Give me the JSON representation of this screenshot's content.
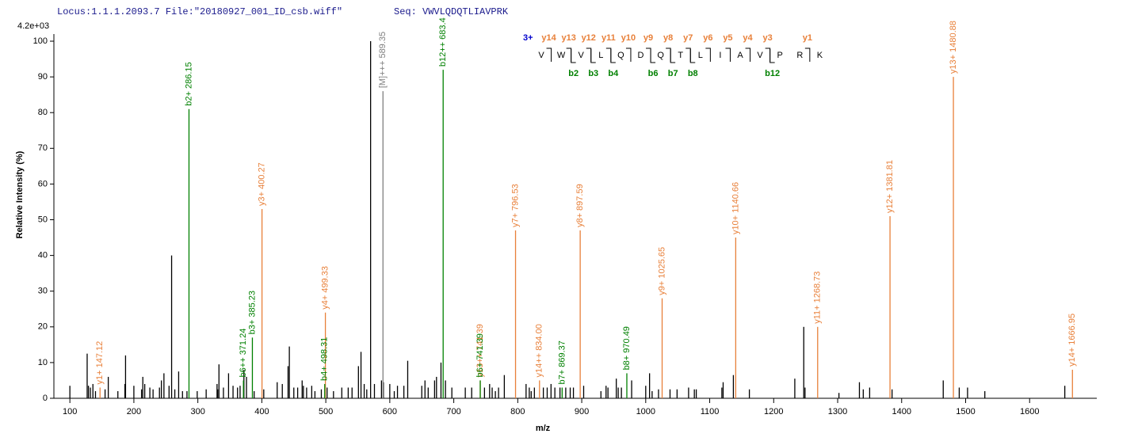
{
  "header": {
    "locus": "Locus:1.1.1.2093.7 File:\"20180927_001_ID_csb.wiff\"",
    "seq": "Seq: VWVLQDQTLIAVPRK"
  },
  "chart_data": {
    "type": "spectrum",
    "scale_label": "4.2e+03",
    "x_label": "m/z",
    "y_label": "Relative   Intensity (%)",
    "xlim": [
      75,
      1705
    ],
    "ylim": [
      0,
      102
    ],
    "xticks": [
      100,
      200,
      300,
      400,
      500,
      600,
      700,
      800,
      900,
      1000,
      1100,
      1200,
      1300,
      1400,
      1500,
      1600
    ],
    "yticks": [
      0,
      10,
      20,
      30,
      40,
      50,
      60,
      70,
      80,
      90,
      100
    ],
    "series": [
      {
        "color": "#000000",
        "x": [
          100,
          127,
          129,
          132,
          136,
          140,
          155,
          160,
          175,
          186,
          187,
          200,
          212,
          214,
          217,
          225,
          230,
          240,
          243,
          247,
          255,
          259,
          264,
          270,
          276,
          283,
          299,
          313,
          330,
          331,
          333,
          340,
          348,
          355,
          362,
          366,
          372,
          376,
          388,
          403,
          424,
          432,
          441,
          443,
          450,
          456,
          463,
          465,
          470,
          478,
          483,
          493,
          502,
          512,
          525,
          535,
          541,
          551,
          555,
          560,
          564,
          570,
          576,
          587,
          590,
          600,
          607,
          612,
          622,
          628,
          650,
          655,
          660,
          670,
          673,
          680,
          687,
          697,
          718,
          728,
          748,
          756,
          760,
          765,
          770,
          779,
          813,
          818,
          821,
          826,
          840,
          846,
          852,
          858,
          866,
          875,
          882,
          887,
          903,
          930,
          938,
          941,
          954,
          957,
          962,
          978,
          1000,
          1006,
          1010,
          1020,
          1038,
          1049,
          1067,
          1076,
          1079,
          1119,
          1121,
          1137,
          1162,
          1233,
          1247,
          1249,
          1302,
          1334,
          1340,
          1350,
          1385,
          1465,
          1490,
          1503,
          1530,
          1655
        ],
        "values": [
          3.5,
          12.5,
          3.5,
          3,
          4,
          2,
          2.5,
          6,
          2,
          4,
          12,
          3.5,
          2.5,
          6,
          4,
          3,
          2.5,
          3,
          5,
          7,
          3.5,
          40,
          2.5,
          7.5,
          2,
          2,
          2,
          2.5,
          4,
          2.5,
          9.5,
          3,
          7,
          3.5,
          3,
          3.5,
          8,
          6,
          2,
          2.5,
          4.5,
          4,
          9,
          14.5,
          3,
          3,
          5,
          3.5,
          3,
          3.5,
          2,
          2.5,
          3,
          2,
          3,
          3,
          3,
          9,
          13,
          4,
          2.5,
          100,
          4,
          5,
          4.5,
          4,
          2,
          3.5,
          3.5,
          10.5,
          3.5,
          5,
          3,
          5,
          6,
          10,
          5,
          3,
          3,
          3,
          3,
          4,
          3,
          2,
          3,
          6.5,
          4,
          3,
          2,
          3,
          3,
          3,
          4,
          3,
          3,
          3,
          3,
          3,
          3.5,
          2,
          3.5,
          3,
          5.5,
          3,
          3,
          5,
          3.5,
          7,
          2,
          2.5,
          2.5,
          2.5,
          3,
          2.5,
          2.5,
          3,
          4.5,
          6.5,
          2.5,
          5.5,
          20,
          3,
          1.5,
          4.5,
          2.5,
          3,
          2.5,
          5,
          3,
          3,
          2,
          3.5
        ]
      },
      {
        "color": "#e8803a",
        "x": [
          147.12,
          400.27,
          499.33,
          741.39,
          796.53,
          834.0,
          897.59,
          1025.65,
          1140.66,
          1268.73,
          1381.81,
          1480.88,
          1666.95
        ],
        "values": [
          3,
          53,
          24,
          5,
          47,
          5,
          47,
          28,
          45,
          20,
          51,
          90,
          8
        ],
        "labels": [
          "y1+ 147.12",
          "y3+ 400.27",
          "y4+ 499.33",
          "y13++ 741.39",
          "y7+ 796.53",
          "y14++ 834.00",
          "y8+ 897.59",
          "y9+ 1025.65",
          "y10+ 1140.66",
          "y11+ 1268.73",
          "y12+ 1381.81",
          "y13+ 1480.88",
          "y14+ 1666.95"
        ]
      },
      {
        "color": "#008000",
        "x": [
          286.15,
          371.24,
          385.23,
          498.31,
          683.4,
          741.39,
          869.37,
          970.49
        ],
        "values": [
          81,
          5,
          17,
          4,
          92,
          5,
          3,
          7
        ],
        "labels": [
          "b2+ 286.15",
          "b6++ 371.24",
          "b3+ 385.23",
          "b4+ 498.31",
          "b12++ 683.4",
          "b6+ 741.39",
          "b7+ 869.37",
          "b8+ 970.49"
        ]
      },
      {
        "color": "#808080",
        "x": [
          589.35
        ],
        "values": [
          86
        ],
        "labels": [
          "[M]+++ 589.35"
        ]
      }
    ]
  },
  "sequence": {
    "charge": "3+",
    "residues": [
      "V",
      "W",
      "V",
      "L",
      "Q",
      "D",
      "Q",
      "T",
      "L",
      "I",
      "A",
      "V",
      "P",
      "R",
      "K"
    ],
    "y_ions": [
      "y14",
      "y13",
      "y12",
      "y11",
      "y10",
      "y9",
      "y8",
      "y7",
      "y6",
      "y5",
      "y4",
      "y3",
      null,
      "y1"
    ],
    "b_ions": [
      null,
      "b2",
      "b3",
      "b4",
      null,
      "b6",
      "b7",
      "b8",
      null,
      null,
      null,
      "b12",
      null,
      null
    ]
  }
}
